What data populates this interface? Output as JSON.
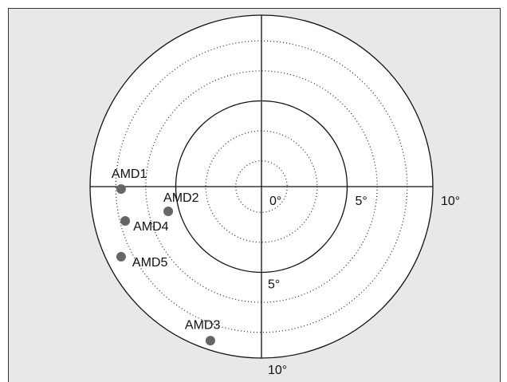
{
  "chart_data": {
    "type": "polar-scatter",
    "labels": [
      "AMD1",
      "AMD2",
      "AMD4",
      "AMD5",
      "AMD3"
    ],
    "x": [
      -8.19,
      -5.44,
      -7.95,
      -8.19,
      -2.98
    ],
    "y": [
      -0.14,
      -1.44,
      -2.0,
      -4.09,
      -8.98
    ],
    "color": "#666666",
    "xlim": [
      -10,
      10
    ],
    "ylim": [
      -10,
      10
    ],
    "xticks": [
      {
        "value": 0,
        "label": "0°"
      },
      {
        "value": 5,
        "label": "5°"
      },
      {
        "value": 10,
        "label": "10°"
      }
    ],
    "yticks": [
      {
        "value": -5,
        "label": "5°"
      },
      {
        "value": -10,
        "label": "10°"
      }
    ],
    "minor_rings": [
      1.5,
      3.25,
      6.75,
      8.5
    ]
  }
}
